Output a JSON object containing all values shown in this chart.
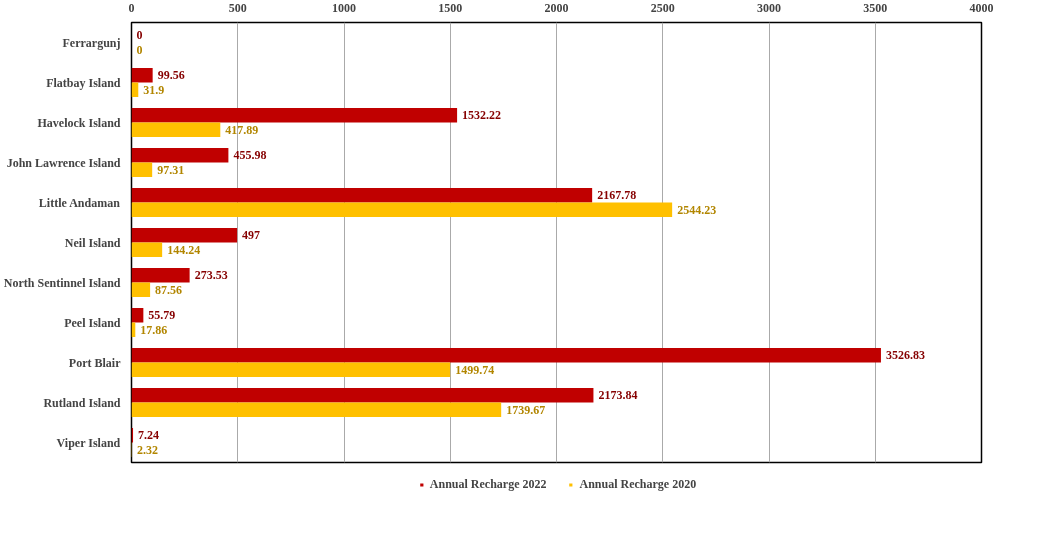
{
  "chart_data": {
    "type": "bar",
    "orientation": "horizontal",
    "categories": [
      "Ferrargunj",
      "Flatbay Island",
      "Havelock Island",
      "John Lawrence Island",
      "Little Andaman",
      "Neil Island",
      "North Sentinnel Island",
      "Peel Island",
      "Port Blair",
      "Rutland Island",
      "Viper Island"
    ],
    "series": [
      {
        "name": "Annual Recharge 2022",
        "color": "#c00000",
        "values": [
          0,
          99.56,
          1532.22,
          455.98,
          2167.78,
          497,
          273.53,
          55.79,
          3526.83,
          2173.84,
          7.24
        ]
      },
      {
        "name": "Annual Recharge 2020",
        "color": "#ffc000",
        "values": [
          0,
          31.9,
          417.89,
          97.31,
          2544.23,
          144.24,
          87.56,
          17.86,
          1499.74,
          1739.67,
          2.32
        ]
      }
    ],
    "xlim": [
      0,
      4000
    ],
    "xticks": [
      0,
      500,
      1000,
      1500,
      2000,
      2500,
      3000,
      3500,
      4000
    ],
    "grid": "x",
    "legend": "bottom",
    "data_labels": true
  }
}
